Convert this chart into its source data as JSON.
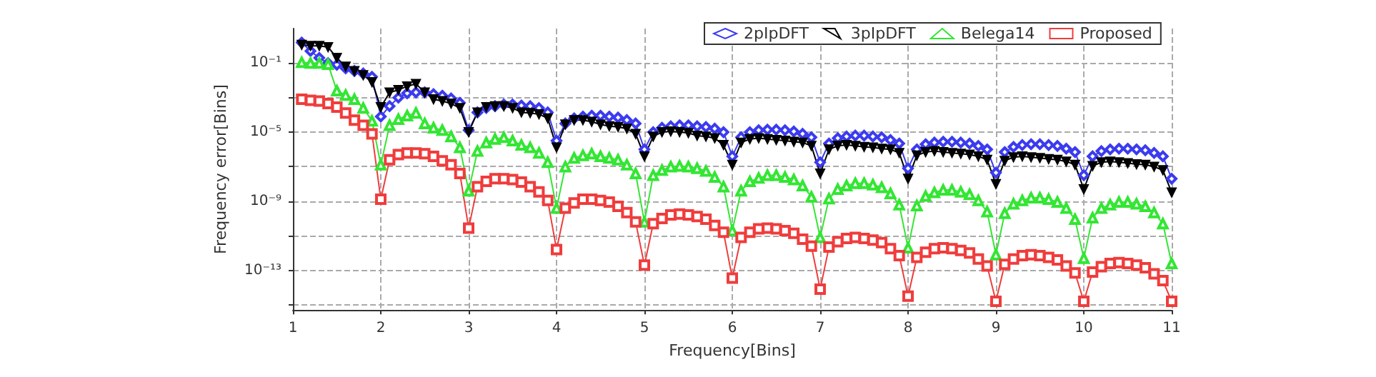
{
  "chart_data": {
    "type": "line",
    "xlabel": "Frequency[Bins]",
    "ylabel": "Frequency error[Bins]",
    "log": "y",
    "grid": true,
    "legend": "top",
    "line_style": "solid",
    "x": [
      1.1,
      1.2,
      1.3,
      1.4,
      1.5,
      1.6,
      1.7,
      1.8,
      1.9,
      2,
      2.1,
      2.2,
      2.3,
      2.4,
      2.5,
      2.6,
      2.7,
      2.8,
      2.9,
      3,
      3.1,
      3.2,
      3.3,
      3.4,
      3.5,
      3.6,
      3.7,
      3.8,
      3.9,
      4,
      4.1,
      4.2,
      4.3,
      4.4,
      4.5,
      4.6,
      4.7,
      4.8,
      4.9,
      5,
      5.1,
      5.2,
      5.3,
      5.4,
      5.5,
      5.6,
      5.7,
      5.8,
      5.9,
      6,
      6.1,
      6.2,
      6.3,
      6.4,
      6.5,
      6.6,
      6.7,
      6.8,
      6.9,
      7,
      7.1,
      7.2,
      7.3,
      7.4,
      7.5,
      7.6,
      7.7,
      7.8,
      7.9,
      8,
      8.1,
      8.2,
      8.3,
      8.4,
      8.5,
      8.6,
      8.7,
      8.8,
      8.9,
      9,
      9.1,
      9.2,
      9.3,
      9.4,
      9.5,
      9.6,
      9.7,
      9.8,
      9.9,
      10,
      10.1,
      10.2,
      10.3,
      10.4,
      10.5,
      10.6,
      10.7,
      10.8,
      10.9,
      11
    ],
    "xlim": [
      1,
      11
    ],
    "xticks": [
      1,
      2,
      3,
      4,
      5,
      6,
      7,
      8,
      9,
      10,
      11
    ],
    "ylim": [
      5e-16,
      10
    ],
    "yticks": [
      {
        "value": 1e-15,
        "label": null
      },
      {
        "value": 1e-13,
        "label": "10⁻¹³"
      },
      {
        "value": 1e-11,
        "label": null
      },
      {
        "value": 1e-09,
        "label": "10⁻⁹"
      },
      {
        "value": 1e-07,
        "label": null
      },
      {
        "value": 1e-05,
        "label": "10⁻⁵"
      },
      {
        "value": 0.001,
        "label": null
      },
      {
        "value": 0.1,
        "label": "10⁻¹"
      }
    ],
    "series": [
      {
        "name": "2pIpDFT",
        "color": "#3b3bf0",
        "marker": "diamond",
        "values": [
          1.55,
          0.5,
          0.2,
          0.1,
          0.08,
          0.05,
          0.035,
          0.025,
          0.016,
          8e-05,
          0.00032,
          0.001,
          0.0018,
          0.002,
          0.002,
          0.0016,
          0.0013,
          0.0009,
          0.0005,
          1.3e-05,
          0.00014,
          0.00025,
          0.00032,
          0.0004,
          0.0004,
          0.00035,
          0.00032,
          0.00025,
          0.00014,
          3.2e-06,
          3.2e-05,
          6.3e-05,
          8e-05,
          9e-05,
          9e-05,
          8e-05,
          7e-05,
          5e-05,
          3.2e-05,
          1e-06,
          1e-05,
          1.8e-05,
          2.2e-05,
          2.5e-05,
          2.5e-05,
          2.2e-05,
          2e-05,
          1.6e-05,
          1e-05,
          4e-07,
          5e-06,
          1e-05,
          1.3e-05,
          1.4e-05,
          1.4e-05,
          1.3e-05,
          1.1e-05,
          8e-06,
          5e-06,
          1.8e-07,
          2.2e-06,
          4.5e-06,
          5.6e-06,
          6.3e-06,
          6.3e-06,
          5.6e-06,
          5e-06,
          3.5e-06,
          2.2e-06,
          8e-08,
          1e-06,
          2e-06,
          2.5e-06,
          2.8e-06,
          2.8e-06,
          2.5e-06,
          2.2e-06,
          1.6e-06,
          1e-06,
          4.5e-08,
          7e-07,
          1.4e-06,
          1.8e-06,
          2e-06,
          2e-06,
          1.8e-06,
          1.6e-06,
          1.1e-06,
          7e-07,
          3.2e-08,
          4e-07,
          8e-07,
          1e-06,
          1.1e-06,
          1.1e-06,
          1e-06,
          9e-07,
          6.3e-07,
          4e-07,
          2e-08
        ]
      },
      {
        "name": "3pIpDFT",
        "color": "#000000",
        "marker": "triangle-down",
        "values": [
          1.15,
          1,
          1,
          0.85,
          0.2,
          0.063,
          0.035,
          0.02,
          0.008,
          0.00028,
          0.002,
          0.0028,
          0.0045,
          0.0063,
          0.002,
          0.0008,
          0.00063,
          0.00045,
          0.00025,
          1e-05,
          0.00014,
          0.00028,
          0.00032,
          0.00032,
          0.00025,
          0.00014,
          0.00013,
          0.00011,
          6.3e-05,
          1.3e-06,
          2.8e-05,
          5e-05,
          5e-05,
          4e-05,
          2.8e-05,
          2.2e-05,
          2e-05,
          1.6e-05,
          8e-06,
          4e-07,
          5.6e-06,
          1e-05,
          1.1e-05,
          1e-05,
          9e-06,
          6.3e-06,
          5.6e-06,
          4.5e-06,
          1.8e-06,
          1.3e-07,
          2.5e-06,
          4e-06,
          4.5e-06,
          4e-06,
          3.5e-06,
          3.2e-06,
          2.8e-06,
          2.5e-06,
          1.6e-06,
          4e-08,
          1e-06,
          1.6e-06,
          1.8e-06,
          1.6e-06,
          1.4e-06,
          1.3e-06,
          1.1e-06,
          1e-06,
          6.3e-07,
          2e-08,
          4.5e-07,
          7e-07,
          8e-07,
          7e-07,
          6.3e-07,
          5.6e-07,
          5e-07,
          4e-07,
          2.5e-07,
          1e-08,
          2.2e-07,
          3.5e-07,
          4e-07,
          3.5e-07,
          3.2e-07,
          2.8e-07,
          2.5e-07,
          2e-07,
          1.3e-07,
          5e-09,
          1.1e-07,
          1.8e-07,
          2e-07,
          1.8e-07,
          1.6e-07,
          1.4e-07,
          1.3e-07,
          1e-07,
          6.3e-08,
          3.2e-09
        ]
      },
      {
        "name": "Belega14",
        "color": "#33e633",
        "marker": "triangle",
        "values": [
          0.11,
          0.1,
          0.1,
          0.085,
          0.0025,
          0.0014,
          0.0008,
          0.00025,
          4.5e-05,
          1.3e-07,
          2.5e-05,
          5.6e-05,
          9e-05,
          0.00013,
          3.2e-05,
          1.8e-05,
          1.3e-05,
          5.6e-06,
          1.3e-06,
          4e-09,
          8e-07,
          2.5e-06,
          4e-06,
          5e-06,
          3.2e-06,
          1.8e-06,
          1.3e-06,
          6.3e-07,
          1.8e-07,
          4e-10,
          1e-07,
          3.2e-07,
          4.5e-07,
          5.6e-07,
          4e-07,
          3.2e-07,
          2.5e-07,
          1.3e-07,
          4e-08,
          6.3e-11,
          3.2e-08,
          6.3e-08,
          1e-07,
          1.1e-07,
          1e-07,
          8e-08,
          5.6e-08,
          2.5e-08,
          7e-09,
          2e-11,
          4e-09,
          1.4e-08,
          2.2e-08,
          3.2e-08,
          3.2e-08,
          2.5e-08,
          1.8e-08,
          8e-09,
          1.8e-09,
          8e-12,
          1.4e-09,
          5e-09,
          8e-09,
          1.1e-08,
          1.1e-08,
          9e-09,
          6.3e-09,
          2.8e-09,
          6.3e-10,
          2e-12,
          5.6e-10,
          2e-09,
          3.2e-09,
          4.5e-09,
          4.5e-09,
          3.5e-09,
          2.5e-09,
          1.1e-09,
          2.5e-10,
          8e-13,
          2e-10,
          7e-10,
          1.1e-09,
          1.6e-09,
          1.6e-09,
          1.3e-09,
          9e-10,
          4e-10,
          9e-11,
          5e-13,
          1.1e-10,
          4e-10,
          6.3e-10,
          9e-10,
          9e-10,
          7e-10,
          5e-10,
          2.2e-10,
          5e-11,
          2.5e-13
        ]
      },
      {
        "name": "Proposed",
        "color": "#f03c3c",
        "marker": "square",
        "values": [
          0.0008,
          0.0007,
          0.00063,
          0.00045,
          0.00028,
          0.00013,
          5e-05,
          2.5e-05,
          8e-06,
          1.3e-09,
          2.5e-07,
          5e-07,
          6.3e-07,
          6.3e-07,
          5.6e-07,
          4e-07,
          2.2e-07,
          1.3e-07,
          4e-08,
          2.8e-11,
          7e-09,
          1.4e-08,
          2e-08,
          2e-08,
          1.8e-08,
          1.3e-08,
          7e-09,
          3.5e-09,
          1.1e-09,
          1.6e-12,
          4e-10,
          8e-10,
          1.3e-09,
          1.3e-09,
          1.1e-09,
          9e-10,
          5e-10,
          2.2e-10,
          6.3e-11,
          2e-13,
          5e-11,
          1e-10,
          1.6e-10,
          1.8e-10,
          1.6e-10,
          1.3e-10,
          9e-11,
          4e-11,
          1.6e-11,
          3.5e-14,
          8e-12,
          1.6e-11,
          2.5e-11,
          2.8e-11,
          2.5e-11,
          2e-11,
          1.4e-11,
          6.3e-12,
          2.5e-12,
          8e-15,
          2.2e-12,
          4.5e-12,
          7e-12,
          8e-12,
          7e-12,
          5.6e-12,
          4e-12,
          1.8e-12,
          7e-13,
          3.2e-15,
          5.6e-13,
          1.1e-12,
          1.8e-12,
          2e-12,
          1.8e-12,
          1.4e-12,
          1e-12,
          4.5e-13,
          1.8e-13,
          1.6e-15,
          2.2e-13,
          4.5e-13,
          7e-13,
          8e-13,
          7e-13,
          5.6e-13,
          4e-13,
          1.8e-13,
          7e-14,
          1.6e-15,
          8e-14,
          1.6e-13,
          2.5e-13,
          2.8e-13,
          2.5e-13,
          2e-13,
          1.4e-13,
          6.3e-14,
          2.5e-14,
          1.6e-15
        ]
      }
    ]
  }
}
